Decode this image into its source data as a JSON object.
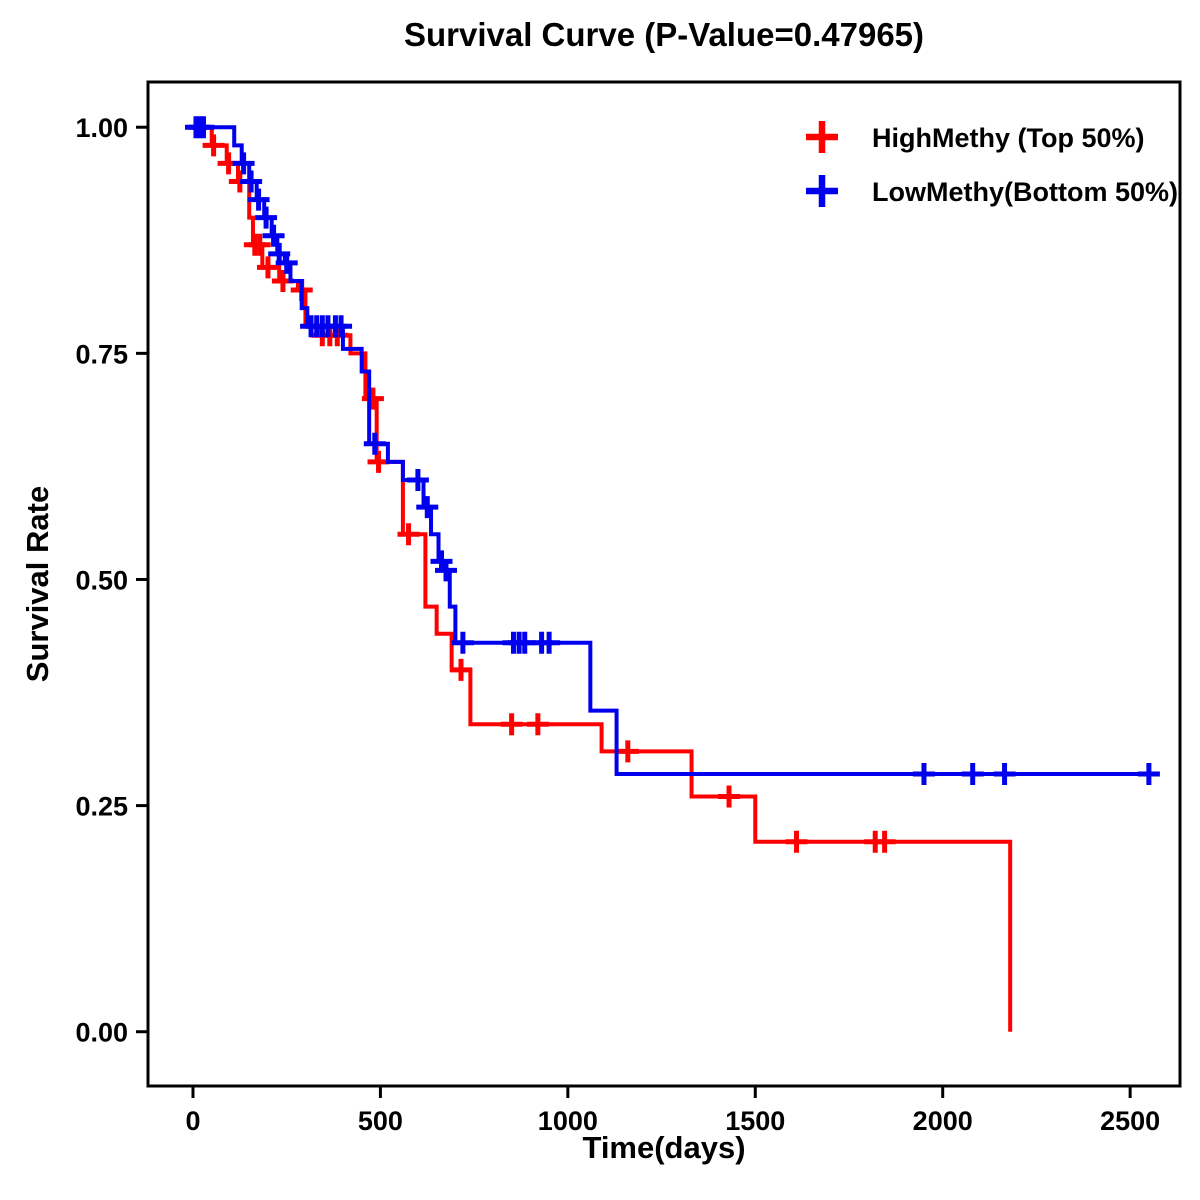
{
  "chart_data": {
    "type": "line",
    "subtype": "kaplan-meier-step-survival",
    "title": "Survival Curve (P-Value=0.47965)",
    "xlabel": "Time(days)",
    "ylabel": "Survival Rate",
    "xlim": [
      -120,
      2633
    ],
    "ylim": [
      -0.06,
      1.05
    ],
    "xticks": [
      0,
      500,
      1000,
      1500,
      2000,
      2500
    ],
    "xtick_labels": [
      "0",
      "500",
      "1000",
      "1500",
      "2000",
      "2500"
    ],
    "yticks": [
      0.0,
      0.25,
      0.5,
      0.75,
      1.0
    ],
    "ytick_labels": [
      "0.00",
      "0.25",
      "0.50",
      "0.75",
      "1.00"
    ],
    "grid": false,
    "legend_position": "top-right",
    "series": [
      {
        "name": "HighMethy (Top 50%)",
        "color": "#FF0000",
        "steps": [
          [
            0,
            1.0
          ],
          [
            50,
            0.98
          ],
          [
            90,
            0.96
          ],
          [
            120,
            0.94
          ],
          [
            150,
            0.9
          ],
          [
            160,
            0.87
          ],
          [
            185,
            0.845
          ],
          [
            230,
            0.83
          ],
          [
            280,
            0.82
          ],
          [
            300,
            0.78
          ],
          [
            335,
            0.77
          ],
          [
            420,
            0.75
          ],
          [
            460,
            0.7
          ],
          [
            490,
            0.63
          ],
          [
            560,
            0.55
          ],
          [
            620,
            0.47
          ],
          [
            650,
            0.44
          ],
          [
            690,
            0.4
          ],
          [
            740,
            0.34
          ],
          [
            1090,
            0.31
          ],
          [
            1330,
            0.26
          ],
          [
            1500,
            0.21
          ],
          [
            2180,
            0.0
          ]
        ],
        "censors": [
          [
            55,
            0.98
          ],
          [
            95,
            0.96
          ],
          [
            125,
            0.94
          ],
          [
            165,
            0.87
          ],
          [
            178,
            0.87
          ],
          [
            200,
            0.845
          ],
          [
            240,
            0.83
          ],
          [
            290,
            0.82
          ],
          [
            345,
            0.77
          ],
          [
            365,
            0.77
          ],
          [
            385,
            0.77
          ],
          [
            480,
            0.7
          ],
          [
            495,
            0.63
          ],
          [
            575,
            0.55
          ],
          [
            715,
            0.4
          ],
          [
            850,
            0.34
          ],
          [
            920,
            0.34
          ],
          [
            1160,
            0.31
          ],
          [
            1430,
            0.26
          ],
          [
            1610,
            0.21
          ],
          [
            1820,
            0.21
          ],
          [
            1845,
            0.21
          ]
        ]
      },
      {
        "name": "LowMethy(Bottom 50%)",
        "color": "#0000EE",
        "steps": [
          [
            0,
            1.0
          ],
          [
            110,
            0.98
          ],
          [
            130,
            0.96
          ],
          [
            150,
            0.94
          ],
          [
            170,
            0.92
          ],
          [
            190,
            0.9
          ],
          [
            210,
            0.88
          ],
          [
            225,
            0.86
          ],
          [
            245,
            0.85
          ],
          [
            260,
            0.83
          ],
          [
            290,
            0.8
          ],
          [
            305,
            0.78
          ],
          [
            400,
            0.755
          ],
          [
            450,
            0.73
          ],
          [
            470,
            0.65
          ],
          [
            520,
            0.63
          ],
          [
            560,
            0.61
          ],
          [
            615,
            0.58
          ],
          [
            635,
            0.55
          ],
          [
            655,
            0.52
          ],
          [
            670,
            0.51
          ],
          [
            685,
            0.47
          ],
          [
            700,
            0.43
          ],
          [
            1060,
            0.355
          ],
          [
            1130,
            0.285
          ],
          [
            2570,
            0.285
          ]
        ],
        "censors": [
          [
            8,
            1.0
          ],
          [
            18,
            1.0
          ],
          [
            28,
            1.0
          ],
          [
            135,
            0.96
          ],
          [
            155,
            0.94
          ],
          [
            175,
            0.92
          ],
          [
            195,
            0.9
          ],
          [
            215,
            0.88
          ],
          [
            230,
            0.86
          ],
          [
            250,
            0.85
          ],
          [
            315,
            0.78
          ],
          [
            330,
            0.78
          ],
          [
            345,
            0.78
          ],
          [
            360,
            0.78
          ],
          [
            380,
            0.78
          ],
          [
            395,
            0.78
          ],
          [
            485,
            0.65
          ],
          [
            600,
            0.61
          ],
          [
            625,
            0.58
          ],
          [
            663,
            0.52
          ],
          [
            675,
            0.51
          ],
          [
            720,
            0.43
          ],
          [
            855,
            0.43
          ],
          [
            870,
            0.43
          ],
          [
            885,
            0.43
          ],
          [
            930,
            0.43
          ],
          [
            950,
            0.43
          ],
          [
            1950,
            0.285
          ],
          [
            2080,
            0.285
          ],
          [
            2165,
            0.285
          ],
          [
            2550,
            0.285
          ]
        ]
      }
    ],
    "style": {
      "line_width": 4,
      "censor_half_size": 11,
      "censor_stroke": 5,
      "border_color": "#000000",
      "background": "#ffffff"
    }
  }
}
